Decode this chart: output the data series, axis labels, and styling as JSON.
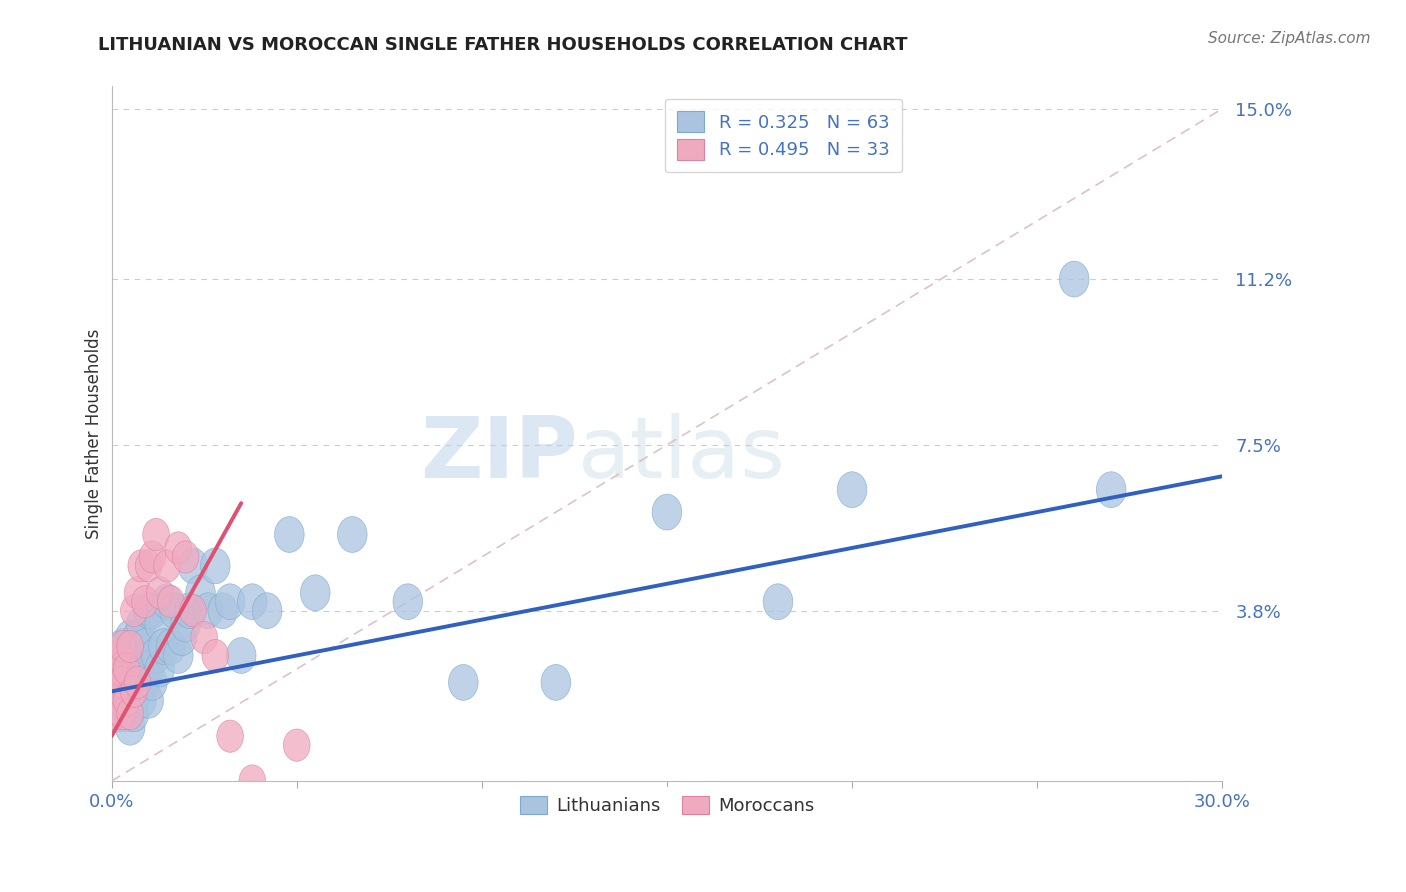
{
  "title": "LITHUANIAN VS MOROCCAN SINGLE FATHER HOUSEHOLDS CORRELATION CHART",
  "source": "Source: ZipAtlas.com",
  "ylabel": "Single Father Households",
  "xlim": [
    0.0,
    0.3
  ],
  "ylim": [
    0.0,
    0.155
  ],
  "ytick_labels": [
    "3.8%",
    "7.5%",
    "11.2%",
    "15.0%"
  ],
  "ytick_values": [
    0.038,
    0.075,
    0.112,
    0.15
  ],
  "blue_color": "#aac4e0",
  "blue_edge_color": "#7aaad0",
  "pink_color": "#f0aac0",
  "pink_edge_color": "#e080a0",
  "blue_line_color": "#3060c0",
  "pink_line_color": "#e05070",
  "dash_line_color": "#d8bcc0",
  "R_blue": 0.325,
  "N_blue": 63,
  "R_pink": 0.495,
  "N_pink": 33,
  "label_lithuanians": "Lithuanians",
  "label_moroccans": "Moroccans",
  "li_x": [
    0.001,
    0.001,
    0.002,
    0.002,
    0.002,
    0.003,
    0.003,
    0.003,
    0.003,
    0.004,
    0.004,
    0.004,
    0.005,
    0.005,
    0.005,
    0.005,
    0.006,
    0.006,
    0.006,
    0.007,
    0.007,
    0.007,
    0.008,
    0.008,
    0.008,
    0.009,
    0.009,
    0.01,
    0.01,
    0.01,
    0.011,
    0.011,
    0.012,
    0.013,
    0.013,
    0.014,
    0.015,
    0.016,
    0.017,
    0.018,
    0.019,
    0.02,
    0.021,
    0.022,
    0.024,
    0.026,
    0.028,
    0.03,
    0.032,
    0.035,
    0.038,
    0.042,
    0.048,
    0.055,
    0.065,
    0.08,
    0.095,
    0.12,
    0.15,
    0.18,
    0.2,
    0.26,
    0.27
  ],
  "li_y": [
    0.018,
    0.022,
    0.015,
    0.018,
    0.025,
    0.018,
    0.02,
    0.025,
    0.03,
    0.015,
    0.022,
    0.028,
    0.012,
    0.018,
    0.025,
    0.032,
    0.015,
    0.025,
    0.03,
    0.02,
    0.025,
    0.032,
    0.018,
    0.025,
    0.035,
    0.022,
    0.03,
    0.018,
    0.025,
    0.038,
    0.022,
    0.038,
    0.028,
    0.025,
    0.035,
    0.03,
    0.04,
    0.03,
    0.038,
    0.028,
    0.032,
    0.035,
    0.038,
    0.048,
    0.042,
    0.038,
    0.048,
    0.038,
    0.04,
    0.028,
    0.04,
    0.038,
    0.055,
    0.042,
    0.055,
    0.04,
    0.022,
    0.022,
    0.06,
    0.04,
    0.065,
    0.112,
    0.065
  ],
  "mo_x": [
    0.001,
    0.001,
    0.001,
    0.002,
    0.002,
    0.002,
    0.003,
    0.003,
    0.003,
    0.004,
    0.004,
    0.005,
    0.005,
    0.006,
    0.006,
    0.007,
    0.007,
    0.008,
    0.009,
    0.01,
    0.011,
    0.012,
    0.013,
    0.015,
    0.016,
    0.018,
    0.02,
    0.022,
    0.025,
    0.028,
    0.032,
    0.038,
    0.05
  ],
  "mo_y": [
    0.015,
    0.02,
    0.025,
    0.018,
    0.025,
    0.028,
    0.015,
    0.022,
    0.03,
    0.018,
    0.025,
    0.015,
    0.03,
    0.02,
    0.038,
    0.022,
    0.042,
    0.048,
    0.04,
    0.048,
    0.05,
    0.055,
    0.042,
    0.048,
    0.04,
    0.052,
    0.05,
    0.038,
    0.032,
    0.028,
    0.01,
    0.0,
    0.008
  ],
  "blue_line_x0": 0.0,
  "blue_line_y0": 0.02,
  "blue_line_x1": 0.3,
  "blue_line_y1": 0.068,
  "pink_line_x0": 0.0,
  "pink_line_y0": 0.01,
  "pink_line_x1": 0.035,
  "pink_line_y1": 0.062
}
